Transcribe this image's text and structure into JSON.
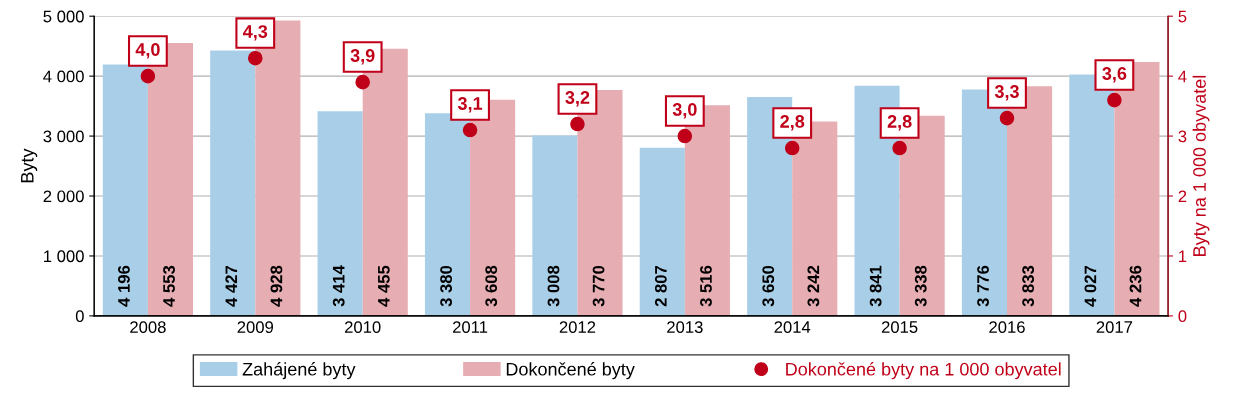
{
  "chart_data": {
    "type": "bar",
    "ylabel": "Byty",
    "y2label": "Byty na 1 000 obyvatel",
    "categories": [
      "2008",
      "2009",
      "2010",
      "2011",
      "2012",
      "2013",
      "2014",
      "2015",
      "2016",
      "2017"
    ],
    "series": [
      {
        "name": "Zahájené byty",
        "color": "#a9cfe8",
        "values": [
          4196,
          4427,
          3414,
          3380,
          3008,
          2807,
          3650,
          3841,
          3776,
          4027
        ],
        "value_labels": [
          "4 196",
          "4 427",
          "3 414",
          "3 380",
          "3 008",
          "2 807",
          "3 650",
          "3 841",
          "3 776",
          "4 027"
        ]
      },
      {
        "name": "Dokončené byty",
        "color": "#e6adb3",
        "values": [
          4553,
          4928,
          4455,
          3608,
          3770,
          3516,
          3242,
          3338,
          3833,
          4236
        ],
        "value_labels": [
          "4 553",
          "4 928",
          "4 455",
          "3 608",
          "3 770",
          "3 516",
          "3 242",
          "3 338",
          "3 833",
          "4 236"
        ]
      },
      {
        "name": "Dokončené byty na 1 000 obyvatel",
        "type": "scatter",
        "axis": "y2",
        "color": "#c00018",
        "marker": "circle",
        "values": [
          4.0,
          4.3,
          3.9,
          3.1,
          3.2,
          3.0,
          2.8,
          2.8,
          3.3,
          3.6
        ],
        "value_labels": [
          "4,0",
          "4,3",
          "3,9",
          "3,1",
          "3,2",
          "3,0",
          "2,8",
          "2,8",
          "3,3",
          "3,6"
        ]
      }
    ],
    "ylim": [
      0,
      5000
    ],
    "yticks": [
      {
        "value": 0,
        "label": "0"
      },
      {
        "value": 1000,
        "label": "1 000"
      },
      {
        "value": 2000,
        "label": "2 000"
      },
      {
        "value": 3000,
        "label": "3 000"
      },
      {
        "value": 4000,
        "label": "4 000"
      },
      {
        "value": 5000,
        "label": "5 000"
      }
    ],
    "y2lim": [
      0,
      5
    ],
    "y2ticks": [
      0,
      1,
      2,
      3,
      4,
      5
    ],
    "grid": "y",
    "legend": "bottom"
  }
}
